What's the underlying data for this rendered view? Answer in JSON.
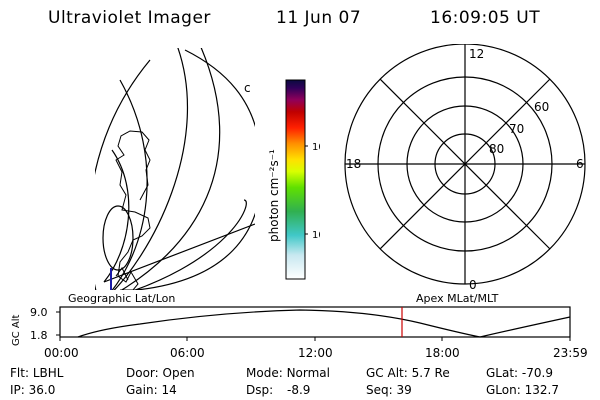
{
  "header": {
    "instrument": "Ultraviolet Imager",
    "date": "11 Jun 07",
    "time": "16:09:05 UT"
  },
  "colorbar": {
    "unit_label": "photon cm⁻²s⁻¹",
    "ticks": [
      "100",
      "10"
    ]
  },
  "polar_plot": {
    "mlt_labels": {
      "top": "12",
      "left": "18",
      "right": "6",
      "bottom": "0"
    },
    "lat_labels": [
      "60",
      "70",
      "80"
    ]
  },
  "map_labels": {
    "left": "Geographic Lat/Lon",
    "right": "Apex MLat/MLT"
  },
  "altitude_strip": {
    "ylabel": "GC Alt",
    "yticks": [
      "9.0",
      "1.8"
    ],
    "xticks": [
      "00:00",
      "06:00",
      "12:00",
      "18:00",
      "23:59"
    ],
    "current_time_marker": "16:09"
  },
  "status": {
    "flt": {
      "label": "Flt:",
      "value": "LBHL"
    },
    "ip": {
      "label": "IP:",
      "value": "36.0"
    },
    "door": {
      "label": "Door:",
      "value": "Open"
    },
    "gain": {
      "label": "Gain:",
      "value": "14"
    },
    "mode": {
      "label": "Mode:",
      "value": "Normal"
    },
    "dsp": {
      "label": "Dsp:",
      "value": "-8.9"
    },
    "gcalt": {
      "label": "GC Alt:",
      "value": "5.7 Re"
    },
    "seq": {
      "label": "Seq:",
      "value": "39"
    },
    "glat": {
      "label": "GLat:",
      "value": "-70.9"
    },
    "glon": {
      "label": "GLon:",
      "value": "132.7"
    }
  },
  "colors": {
    "marker": "#cc0000",
    "coast": "#000000",
    "satellite_track": "#1a1aa6"
  }
}
